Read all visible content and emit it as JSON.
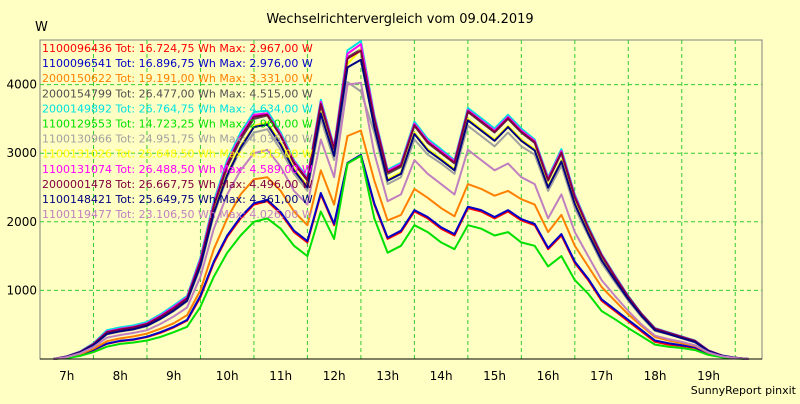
{
  "chart_data": {
    "type": "line",
    "title": "Wechselrichtervergleich vom 09.04.2019",
    "ylabel": "W",
    "footer": "SunnyReport pinxit",
    "ylim": [
      0,
      4650
    ],
    "xlim": [
      6.5,
      20
    ],
    "yticks": [
      1000,
      2000,
      3000,
      4000
    ],
    "xticks": [
      "7h",
      "8h",
      "9h",
      "10h",
      "11h",
      "12h",
      "13h",
      "14h",
      "15h",
      "16h",
      "17h",
      "18h",
      "19h"
    ],
    "grid": true,
    "legend_position": "top-left",
    "x": [
      6.75,
      7.0,
      7.25,
      7.5,
      7.75,
      8.0,
      8.25,
      8.5,
      8.75,
      9.0,
      9.25,
      9.5,
      9.75,
      10.0,
      10.25,
      10.5,
      10.75,
      11.0,
      11.25,
      11.5,
      11.75,
      12.0,
      12.25,
      12.5,
      12.75,
      13.0,
      13.25,
      13.5,
      13.75,
      14.0,
      14.25,
      14.5,
      14.75,
      15.0,
      15.25,
      15.5,
      15.75,
      16.0,
      16.25,
      16.5,
      16.75,
      17.0,
      17.25,
      17.5,
      17.75,
      18.0,
      18.25,
      18.5,
      18.75,
      19.0,
      19.25,
      19.5,
      19.75
    ],
    "series": [
      {
        "name": "1100096436 Tot: 16.724,75 Wh Max: 2.967,00 W",
        "color": "#ff0000",
        "values": [
          0,
          20,
          60,
          130,
          220,
          260,
          280,
          320,
          380,
          460,
          560,
          900,
          1400,
          1780,
          2050,
          2250,
          2300,
          2120,
          1850,
          1700,
          2400,
          1950,
          2850,
          2970,
          2250,
          1750,
          1850,
          2150,
          2050,
          1900,
          1800,
          2200,
          2150,
          2050,
          2150,
          2020,
          1950,
          1600,
          1800,
          1400,
          1150,
          850,
          700,
          550,
          400,
          250,
          210,
          190,
          160,
          70,
          30,
          10,
          0
        ]
      },
      {
        "name": "1100096541 Tot: 16.896,75 Wh Max: 2.976,00 W",
        "color": "#0000c8",
        "values": [
          0,
          22,
          65,
          135,
          225,
          265,
          285,
          325,
          390,
          470,
          570,
          920,
          1420,
          1800,
          2070,
          2270,
          2320,
          2140,
          1870,
          1720,
          2420,
          1970,
          2860,
          2976,
          2270,
          1770,
          1870,
          2170,
          2070,
          1920,
          1820,
          2220,
          2170,
          2070,
          2170,
          2040,
          1970,
          1620,
          1820,
          1420,
          1170,
          870,
          720,
          570,
          420,
          270,
          230,
          200,
          170,
          80,
          35,
          12,
          0
        ]
      },
      {
        "name": "2000150622 Tot: 19.191,00 Wh Max: 3.331,00 W",
        "color": "#ff8000",
        "values": [
          0,
          25,
          70,
          150,
          260,
          300,
          330,
          370,
          440,
          520,
          640,
          1000,
          1600,
          2050,
          2400,
          2620,
          2650,
          2450,
          2150,
          1950,
          2750,
          2250,
          3250,
          3331,
          2600,
          2020,
          2100,
          2480,
          2350,
          2200,
          2080,
          2550,
          2480,
          2380,
          2450,
          2330,
          2250,
          1850,
          2100,
          1650,
          1350,
          1050,
          850,
          650,
          480,
          320,
          270,
          230,
          190,
          90,
          40,
          14,
          0
        ]
      },
      {
        "name": "2000154799 Tot: 26.477,00 Wh Max: 4.515,00 W",
        "color": "#505050",
        "values": [
          0,
          35,
          100,
          210,
          380,
          420,
          450,
          500,
          600,
          720,
          870,
          1400,
          2200,
          2800,
          3200,
          3500,
          3550,
          3250,
          2850,
          2600,
          3700,
          3050,
          4400,
          4515,
          3500,
          2700,
          2800,
          3400,
          3150,
          3000,
          2850,
          3600,
          3450,
          3300,
          3500,
          3300,
          3150,
          2600,
          3000,
          2350,
          1900,
          1500,
          1200,
          900,
          650,
          440,
          380,
          320,
          260,
          120,
          50,
          18,
          0
        ]
      },
      {
        "name": "2000149892 Tot: 26.764,75 Wh Max: 4.634,00 W",
        "color": "#00e0e0",
        "values": [
          0,
          38,
          110,
          230,
          420,
          460,
          490,
          540,
          650,
          780,
          920,
          1480,
          2300,
          2900,
          3300,
          3600,
          3620,
          3300,
          2900,
          2650,
          3780,
          3100,
          4500,
          4634,
          3560,
          2760,
          2860,
          3460,
          3210,
          3060,
          2900,
          3660,
          3510,
          3360,
          3560,
          3360,
          3200,
          2650,
          3060,
          2400,
          1940,
          1530,
          1220,
          920,
          660,
          450,
          390,
          330,
          270,
          125,
          52,
          19,
          0
        ]
      },
      {
        "name": "1100129553 Tot: 14.723,25 Wh Max: 2.960,00 W",
        "color": "#00e000",
        "values": [
          0,
          15,
          45,
          100,
          180,
          220,
          240,
          270,
          320,
          390,
          470,
          760,
          1200,
          1550,
          1800,
          2000,
          2050,
          1900,
          1650,
          1500,
          2150,
          1750,
          2850,
          2960,
          2050,
          1550,
          1650,
          1950,
          1850,
          1700,
          1600,
          1950,
          1900,
          1800,
          1850,
          1700,
          1650,
          1350,
          1500,
          1150,
          950,
          700,
          580,
          450,
          330,
          210,
          180,
          160,
          130,
          60,
          25,
          8,
          0
        ]
      },
      {
        "name": "1100130966 Tot: 24.951,75 Wh Max: 4.036,00 W",
        "color": "#a0a0a0",
        "values": [
          0,
          32,
          95,
          200,
          360,
          400,
          430,
          480,
          580,
          700,
          840,
          1330,
          2100,
          2650,
          3050,
          3300,
          3350,
          3050,
          2700,
          2450,
          3500,
          2900,
          4036,
          3900,
          3300,
          2550,
          2650,
          3200,
          2980,
          2850,
          2700,
          3400,
          3250,
          3100,
          3300,
          3100,
          2980,
          2450,
          2820,
          2200,
          1800,
          1400,
          1120,
          850,
          610,
          410,
          360,
          300,
          240,
          110,
          46,
          16,
          0
        ]
      },
      {
        "name": "1100131026 Tot: 25.648,50 Wh Max: 4.515,00 W",
        "color": "#ffff00",
        "values": [
          0,
          34,
          98,
          205,
          370,
          410,
          440,
          490,
          590,
          710,
          855,
          1380,
          2150,
          2700,
          3100,
          3400,
          3450,
          3150,
          2780,
          2520,
          3600,
          2980,
          4300,
          4515,
          3400,
          2620,
          2720,
          3300,
          3060,
          2920,
          2770,
          3500,
          3350,
          3200,
          3400,
          3200,
          3060,
          2520,
          2900,
          2280,
          1850,
          1450,
          1160,
          880,
          630,
          425,
          370,
          310,
          250,
          115,
          48,
          17,
          0
        ]
      },
      {
        "name": "1100131074 Tot: 26.488,50 Wh Max: 4.589,00 W",
        "color": "#ff00ff",
        "values": [
          0,
          37,
          105,
          220,
          400,
          440,
          470,
          520,
          630,
          760,
          900,
          1450,
          2260,
          2860,
          3260,
          3560,
          3580,
          3270,
          2880,
          2630,
          3750,
          3080,
          4450,
          4589,
          3530,
          2740,
          2840,
          3430,
          3180,
          3030,
          2880,
          3630,
          3480,
          3330,
          3530,
          3330,
          3180,
          2630,
          3030,
          2380,
          1920,
          1520,
          1210,
          910,
          655,
          445,
          385,
          325,
          265,
          122,
          51,
          18,
          0
        ]
      },
      {
        "name": "2000001478 Tot: 26.667,75 Wh Max: 4.496,00 W",
        "color": "#800040",
        "values": [
          0,
          36,
          102,
          215,
          390,
          430,
          460,
          510,
          615,
          740,
          885,
          1420,
          2230,
          2830,
          3230,
          3530,
          3560,
          3250,
          2860,
          2610,
          3720,
          3060,
          4380,
          4496,
          3500,
          2720,
          2820,
          3410,
          3160,
          3010,
          2860,
          3610,
          3460,
          3310,
          3510,
          3310,
          3160,
          2610,
          3010,
          2360,
          1910,
          1510,
          1200,
          905,
          652,
          442,
          382,
          322,
          262,
          121,
          50,
          18,
          0
        ]
      },
      {
        "name": "1100148421 Tot: 25.649,75 Wh Max: 4.361,00 W",
        "color": "#000080",
        "values": [
          0,
          33,
          96,
          202,
          365,
          405,
          435,
          485,
          585,
          705,
          850,
          1360,
          2130,
          2680,
          3080,
          3380,
          3420,
          3120,
          2750,
          2500,
          3580,
          2960,
          4250,
          4361,
          3380,
          2600,
          2700,
          3280,
          3040,
          2900,
          2750,
          3480,
          3330,
          3180,
          3380,
          3180,
          3040,
          2500,
          2880,
          2260,
          1830,
          1440,
          1150,
          870,
          625,
          420,
          365,
          305,
          248,
          113,
          47,
          17,
          0
        ]
      },
      {
        "name": "1100119477 Tot: 23.106,50 Wh Max: 4.026,00 W",
        "color": "#c080c0",
        "values": [
          0,
          28,
          82,
          175,
          310,
          350,
          380,
          420,
          510,
          620,
          750,
          1200,
          1900,
          2400,
          2750,
          3000,
          3050,
          2800,
          2450,
          2250,
          3200,
          2650,
          4000,
          4026,
          3000,
          2300,
          2400,
          2900,
          2700,
          2550,
          2400,
          3050,
          2900,
          2750,
          2850,
          2650,
          2550,
          2050,
          2400,
          1850,
          1500,
          1150,
          920,
          700,
          500,
          340,
          290,
          250,
          200,
          95,
          40,
          14,
          0
        ]
      }
    ]
  }
}
